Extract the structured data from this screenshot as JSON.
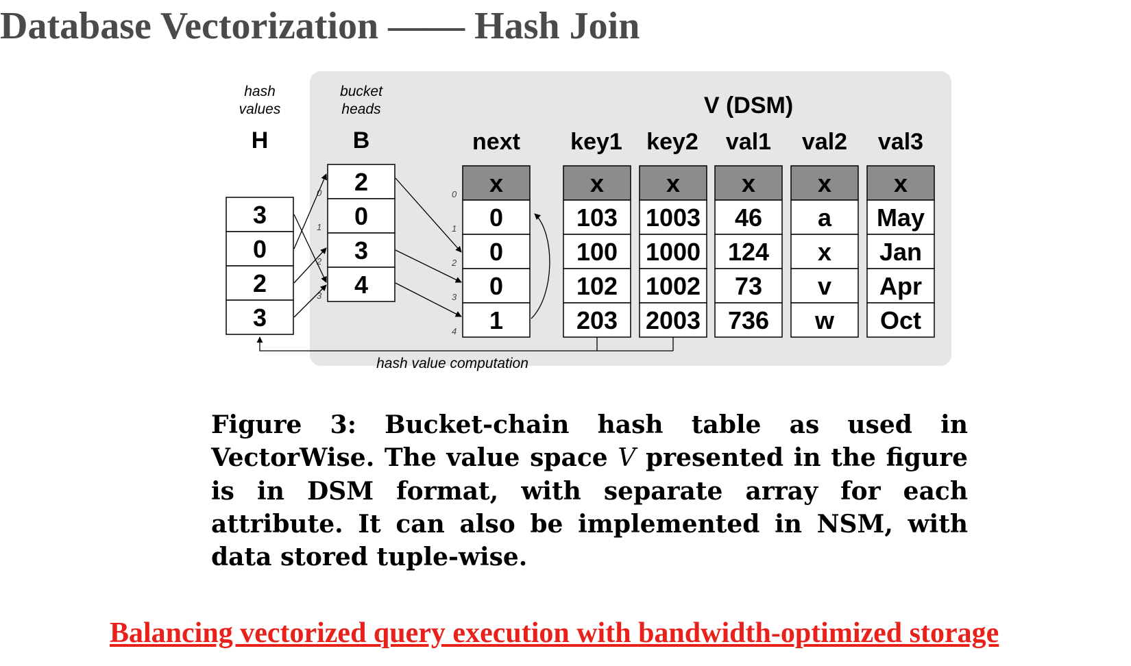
{
  "title": "Database Vectorization —— Hash Join",
  "diagram": {
    "hash_values_label": [
      "hash",
      "values"
    ],
    "bucket_heads_label": [
      "bucket",
      "heads"
    ],
    "value_space_label": "V (DSM)",
    "computation_label": "hash value computation",
    "H": {
      "header": "H",
      "cells": [
        "3",
        "0",
        "2",
        "3"
      ],
      "indices": [
        "0",
        "1",
        "2",
        "3"
      ]
    },
    "B": {
      "header": "B",
      "cells": [
        "2",
        "0",
        "3",
        "4"
      ]
    },
    "next_col": {
      "header": "next",
      "cells": [
        "x",
        "0",
        "0",
        "0",
        "1"
      ],
      "indices": [
        "0",
        "1",
        "2",
        "3",
        "4"
      ]
    },
    "value_columns": [
      {
        "header": "key1",
        "cells": [
          "x",
          "103",
          "100",
          "102",
          "203"
        ]
      },
      {
        "header": "key2",
        "cells": [
          "x",
          "1003",
          "1000",
          "1002",
          "2003"
        ]
      },
      {
        "header": "val1",
        "cells": [
          "x",
          "46",
          "124",
          "73",
          "736"
        ]
      },
      {
        "header": "val2",
        "cells": [
          "x",
          "a",
          "x",
          "v",
          "w"
        ]
      },
      {
        "header": "val3",
        "cells": [
          "x",
          "May",
          "Jan",
          "Apr",
          "Oct"
        ]
      }
    ],
    "colors": {
      "panel": "#e6e6e6",
      "header_cell": "#8c8c8c",
      "cell": "#ffffff"
    }
  },
  "caption": {
    "prefix": "Figure 3: Bucket-chain hash table as used in VectorWise. The value space ",
    "italic": "V",
    "suffix": " presented in the figure is in DSM format, with separate array for each attribute. It can also be implemented in NSM, with data stored tuple-wise."
  },
  "footer_link": "Balancing vectorized query execution with bandwidth-optimized storage"
}
